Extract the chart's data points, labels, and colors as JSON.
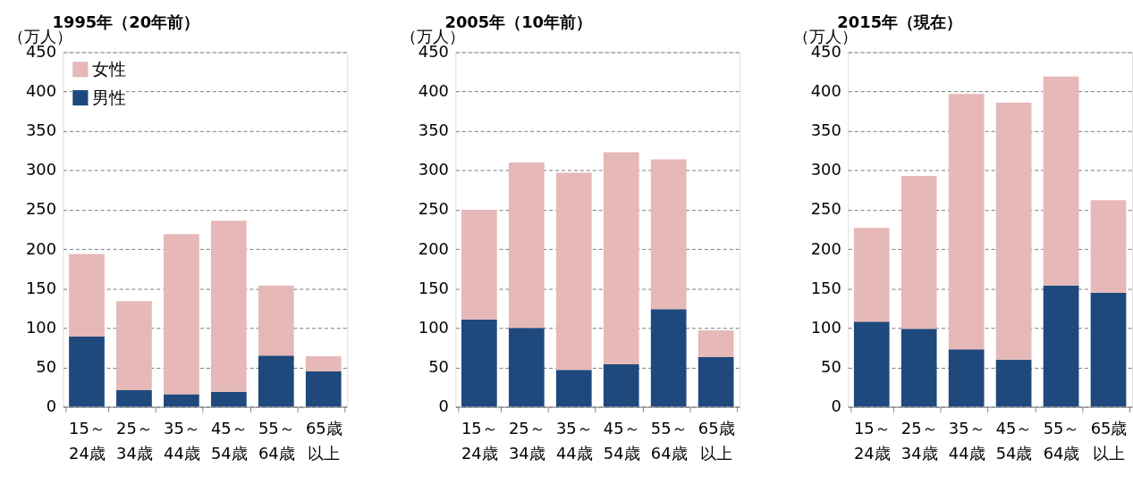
{
  "chart_data": [
    {
      "type": "bar",
      "title": "1995年（20年前）",
      "ylabel": "（万人）",
      "stacked": true,
      "legend": "top left",
      "grid": "y",
      "categories": [
        "15～\n24歳",
        "25～\n34歳",
        "35～\n44歳",
        "45～\n54歳",
        "55～\n64歳",
        "65歳以上"
      ],
      "ylim": [
        0,
        450
      ],
      "yticks": [
        0,
        50,
        100,
        150,
        200,
        250,
        300,
        350,
        400,
        450
      ],
      "series": [
        {
          "name": "男性",
          "color": "#1f497d",
          "values": [
            89,
            21,
            16,
            19,
            65,
            45
          ]
        },
        {
          "name": "女性",
          "color": "#e6b8b7",
          "values": [
            105,
            113,
            203,
            217,
            89,
            19
          ]
        }
      ]
    },
    {
      "type": "bar",
      "title": "2005年（10年前）",
      "ylabel": "（万人）",
      "stacked": true,
      "grid": "y",
      "categories": [
        "15～\n24歳",
        "25～\n34歳",
        "35～\n44歳",
        "45～\n54歳",
        "55～\n64歳",
        "65歳以上"
      ],
      "ylim": [
        0,
        450
      ],
      "yticks": [
        0,
        50,
        100,
        150,
        200,
        250,
        300,
        350,
        400,
        450
      ],
      "series": [
        {
          "color": "#1f497d",
          "values": [
            111,
            100,
            47,
            54,
            124,
            63
          ]
        },
        {
          "color": "#e6b8b7",
          "values": [
            139,
            210,
            250,
            269,
            190,
            34
          ]
        }
      ]
    },
    {
      "type": "bar",
      "title": "2015年（現在）",
      "ylabel": "（万人）",
      "stacked": true,
      "grid": "y",
      "categories": [
        "15～\n24歳",
        "25～\n34歳",
        "35～\n44歳",
        "45～\n54歳",
        "55～\n64歳",
        "65歳以上"
      ],
      "ylim": [
        0,
        450
      ],
      "yticks": [
        0,
        50,
        100,
        150,
        200,
        250,
        300,
        350,
        400,
        450
      ],
      "series": [
        {
          "color": "#1f497d",
          "values": [
            108,
            99,
            73,
            60,
            154,
            145
          ]
        },
        {
          "color": "#e6b8b7",
          "values": [
            119,
            194,
            324,
            326,
            265,
            117
          ]
        }
      ]
    }
  ]
}
